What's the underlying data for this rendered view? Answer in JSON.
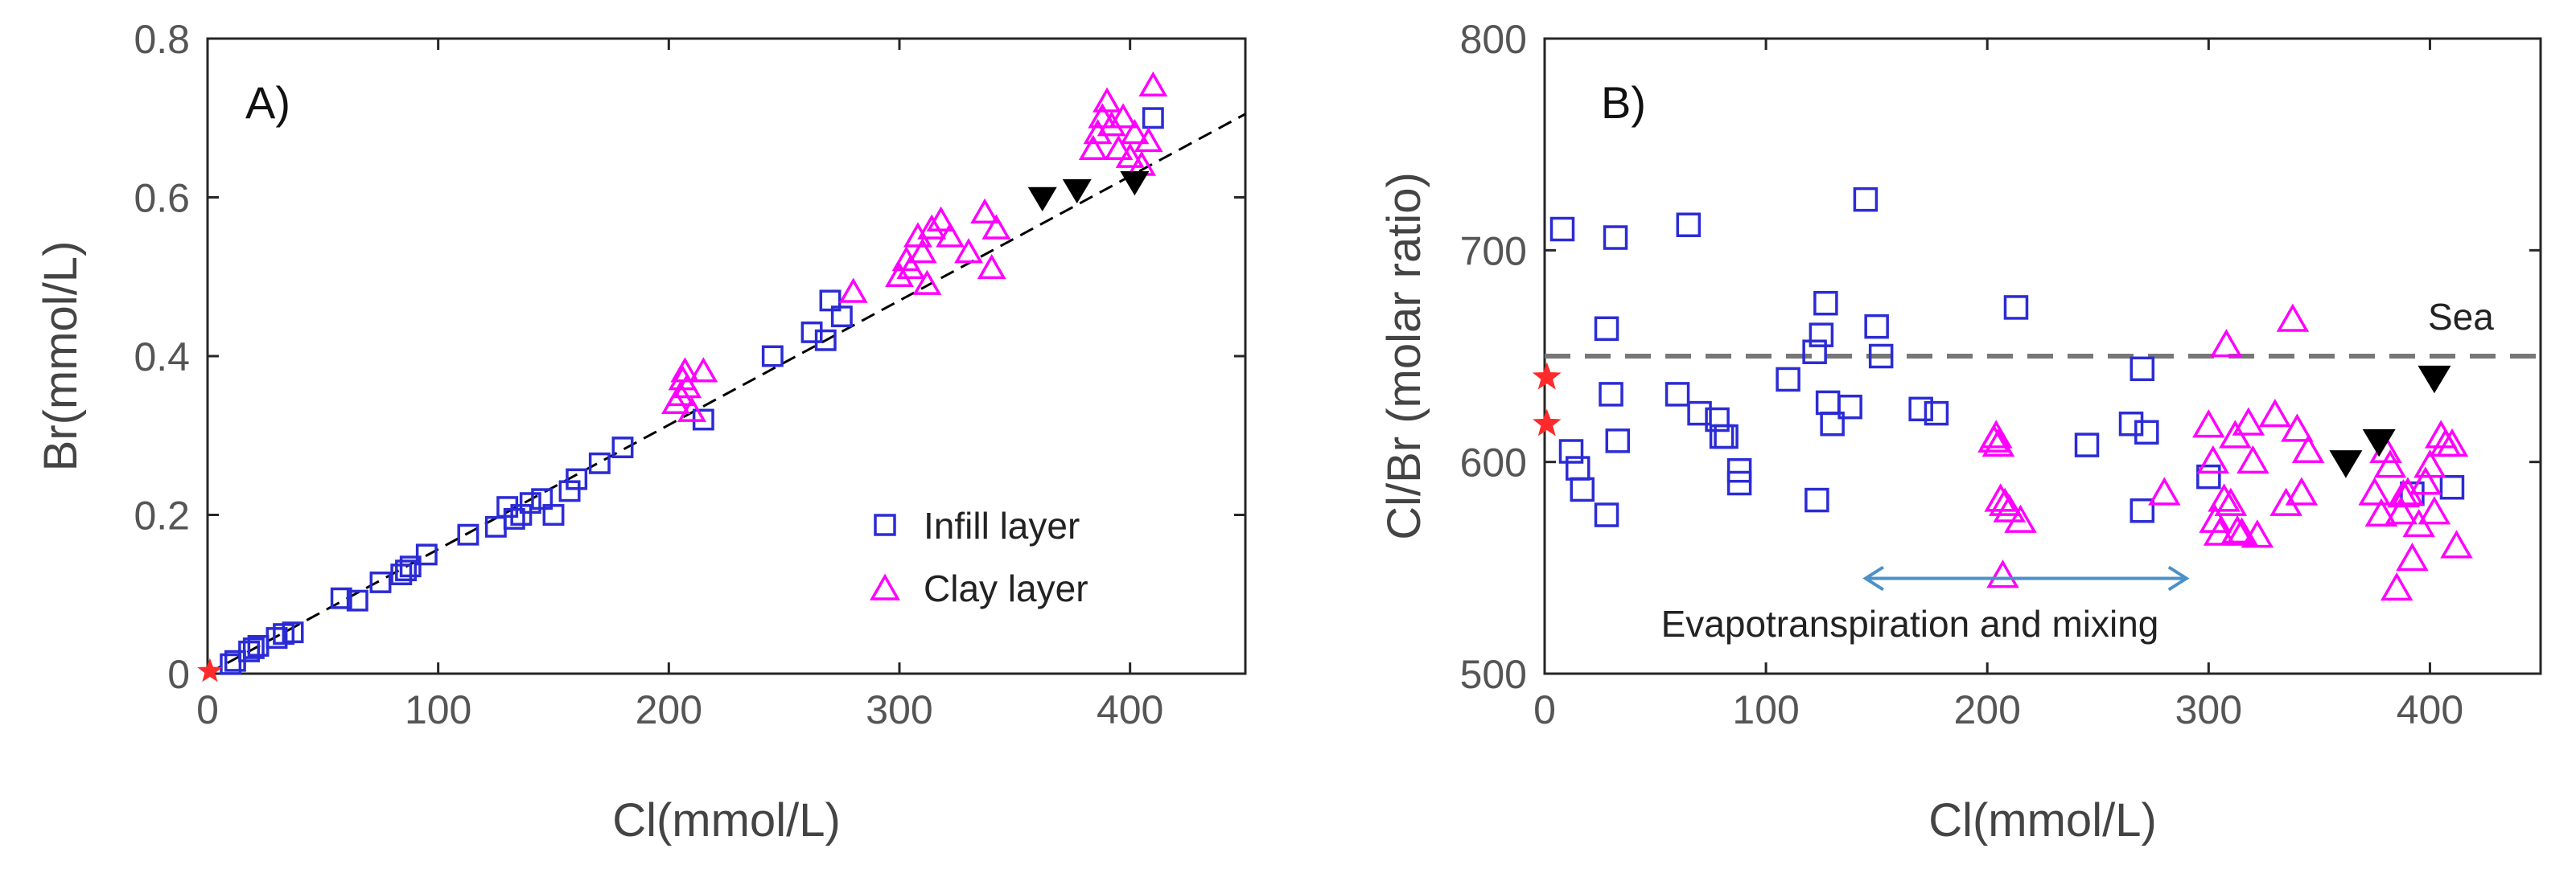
{
  "chart_data": [
    {
      "type": "scatter",
      "panel_label": "A)",
      "xlabel": "Cl(mmol/L)",
      "ylabel": "Br(mmol/L)",
      "xlim": [
        0,
        450
      ],
      "ylim": [
        0,
        0.8
      ],
      "xticks": [
        0,
        100,
        200,
        300,
        400
      ],
      "yticks": [
        0,
        0.2,
        0.4,
        0.6,
        0.8
      ],
      "xtick_labels": [
        "0",
        "100",
        "200",
        "300",
        "400"
      ],
      "ytick_labels": [
        "0",
        "0.2",
        "0.4",
        "0.6",
        "0.8"
      ],
      "legend": [
        {
          "series": "infill",
          "label": "Infill layer"
        },
        {
          "series": "clay",
          "label": "Clay layer"
        }
      ],
      "trend_line": {
        "style": "dashed",
        "color": "#000000",
        "x": [
          0,
          450
        ],
        "y": [
          0,
          0.705
        ]
      },
      "series": [
        {
          "name": "Infill layer",
          "key": "infill",
          "marker": "square",
          "color": "#2b2bd6",
          "points": [
            [
              10,
              0.012
            ],
            [
              12,
              0.016
            ],
            [
              18,
              0.028
            ],
            [
              20,
              0.032
            ],
            [
              22,
              0.035
            ],
            [
              30,
              0.045
            ],
            [
              33,
              0.05
            ],
            [
              37,
              0.052
            ],
            [
              58,
              0.095
            ],
            [
              65,
              0.092
            ],
            [
              75,
              0.115
            ],
            [
              84,
              0.125
            ],
            [
              86,
              0.13
            ],
            [
              88,
              0.135
            ],
            [
              95,
              0.15
            ],
            [
              113,
              0.175
            ],
            [
              125,
              0.185
            ],
            [
              130,
              0.21
            ],
            [
              133,
              0.195
            ],
            [
              136,
              0.2
            ],
            [
              140,
              0.215
            ],
            [
              145,
              0.22
            ],
            [
              150,
              0.2
            ],
            [
              157,
              0.23
            ],
            [
              160,
              0.245
            ],
            [
              170,
              0.265
            ],
            [
              180,
              0.285
            ],
            [
              215,
              0.32
            ],
            [
              245,
              0.4
            ],
            [
              262,
              0.43
            ],
            [
              268,
              0.42
            ],
            [
              270,
              0.47
            ],
            [
              275,
              0.45
            ],
            [
              410,
              0.7
            ]
          ]
        },
        {
          "name": "Clay layer",
          "key": "clay",
          "marker": "triangle-up",
          "color": "#ff00ff",
          "points": [
            [
              203,
              0.34
            ],
            [
              205,
              0.35
            ],
            [
              206,
              0.37
            ],
            [
              207,
              0.38
            ],
            [
              208,
              0.36
            ],
            [
              210,
              0.33
            ],
            [
              215,
              0.38
            ],
            [
              280,
              0.48
            ],
            [
              300,
              0.5
            ],
            [
              303,
              0.52
            ],
            [
              305,
              0.51
            ],
            [
              308,
              0.55
            ],
            [
              310,
              0.53
            ],
            [
              312,
              0.49
            ],
            [
              314,
              0.56
            ],
            [
              318,
              0.57
            ],
            [
              322,
              0.55
            ],
            [
              330,
              0.53
            ],
            [
              337,
              0.58
            ],
            [
              340,
              0.51
            ],
            [
              342,
              0.56
            ],
            [
              384,
              0.66
            ],
            [
              386,
              0.68
            ],
            [
              388,
              0.7
            ],
            [
              390,
              0.72
            ],
            [
              392,
              0.69
            ],
            [
              395,
              0.66
            ],
            [
              397,
              0.7
            ],
            [
              400,
              0.65
            ],
            [
              402,
              0.68
            ],
            [
              405,
              0.64
            ],
            [
              408,
              0.67
            ],
            [
              410,
              0.74
            ]
          ]
        },
        {
          "name": "Sea (black)",
          "key": "sea",
          "marker": "triangle-down",
          "color": "#000000",
          "points": [
            [
              362,
              0.6
            ],
            [
              377,
              0.61
            ],
            [
              402,
              0.62
            ]
          ]
        },
        {
          "name": "Rain (red)",
          "key": "rain",
          "marker": "star",
          "color": "#ff2a2a",
          "points": [
            [
              1,
              0.003
            ]
          ]
        }
      ]
    },
    {
      "type": "scatter",
      "panel_label": "B)",
      "xlabel": "Cl(mmol/L)",
      "ylabel": "Cl/Br (molar ratio)",
      "xlim": [
        0,
        450
      ],
      "ylim": [
        500,
        800
      ],
      "xticks": [
        0,
        100,
        200,
        300,
        400
      ],
      "yticks": [
        500,
        600,
        700,
        800
      ],
      "xtick_labels": [
        "0",
        "100",
        "200",
        "300",
        "400"
      ],
      "ytick_labels": [
        "500",
        "600",
        "700",
        "800"
      ],
      "reference_line": {
        "label": "Sea",
        "y": 650,
        "style": "dashed",
        "color": "#777777"
      },
      "annotation": {
        "text": "Evapotranspiration and mixing",
        "arrow_from_x": 145,
        "arrow_to_x": 290,
        "arrow_y": 545,
        "color": "#4a90c9"
      },
      "series": [
        {
          "name": "Infill layer",
          "key": "infill",
          "marker": "square",
          "color": "#2b2bd6",
          "points": [
            [
              8,
              710
            ],
            [
              12,
              605
            ],
            [
              15,
              597
            ],
            [
              17,
              587
            ],
            [
              28,
              575
            ],
            [
              28,
              663
            ],
            [
              30,
              632
            ],
            [
              32,
              706
            ],
            [
              33,
              610
            ],
            [
              60,
              632
            ],
            [
              65,
              712
            ],
            [
              70,
              623
            ],
            [
              78,
              620
            ],
            [
              80,
              612
            ],
            [
              82,
              612
            ],
            [
              88,
              590
            ],
            [
              88,
              596
            ],
            [
              110,
              639
            ],
            [
              122,
              652
            ],
            [
              123,
              582
            ],
            [
              125,
              660
            ],
            [
              127,
              675
            ],
            [
              128,
              628
            ],
            [
              130,
              618
            ],
            [
              138,
              626
            ],
            [
              145,
              724
            ],
            [
              150,
              664
            ],
            [
              152,
              650
            ],
            [
              170,
              625
            ],
            [
              177,
              623
            ],
            [
              213,
              673
            ],
            [
              245,
              608
            ],
            [
              265,
              618
            ],
            [
              270,
              577
            ],
            [
              270,
              644
            ],
            [
              272,
              614
            ],
            [
              300,
              593
            ],
            [
              392,
              585
            ],
            [
              410,
              588
            ]
          ]
        },
        {
          "name": "Clay layer",
          "key": "clay",
          "marker": "triangle-up",
          "color": "#ff00ff",
          "points": [
            [
              203,
              610
            ],
            [
              204,
              612
            ],
            [
              205,
              608
            ],
            [
              206,
              582
            ],
            [
              207,
              546
            ],
            [
              208,
              580
            ],
            [
              210,
              577
            ],
            [
              215,
              572
            ],
            [
              280,
              585
            ],
            [
              300,
              617
            ],
            [
              302,
              600
            ],
            [
              303,
              572
            ],
            [
              305,
              566
            ],
            [
              307,
              582
            ],
            [
              308,
              655
            ],
            [
              310,
              580
            ],
            [
              312,
              612
            ],
            [
              313,
              567
            ],
            [
              315,
              566
            ],
            [
              318,
              618
            ],
            [
              320,
              600
            ],
            [
              322,
              565
            ],
            [
              330,
              622
            ],
            [
              335,
              580
            ],
            [
              338,
              667
            ],
            [
              340,
              615
            ],
            [
              342,
              585
            ],
            [
              345,
              605
            ],
            [
              375,
              585
            ],
            [
              378,
              575
            ],
            [
              380,
              605
            ],
            [
              382,
              598
            ],
            [
              385,
              540
            ],
            [
              387,
              576
            ],
            [
              388,
              584
            ],
            [
              390,
              585
            ],
            [
              392,
              554
            ],
            [
              395,
              570
            ],
            [
              398,
              590
            ],
            [
              400,
              598
            ],
            [
              402,
              576
            ],
            [
              405,
              612
            ],
            [
              407,
              608
            ],
            [
              410,
              608
            ],
            [
              412,
              560
            ]
          ]
        },
        {
          "name": "Sea (black)",
          "key": "sea",
          "marker": "triangle-down",
          "color": "#000000",
          "points": [
            [
              362,
              600
            ],
            [
              377,
              610
            ],
            [
              402,
              640
            ]
          ]
        },
        {
          "name": "Rain (red)",
          "key": "rain",
          "marker": "star",
          "color": "#ff2a2a",
          "points": [
            [
              1,
              640
            ],
            [
              1,
              618
            ]
          ]
        }
      ]
    }
  ]
}
